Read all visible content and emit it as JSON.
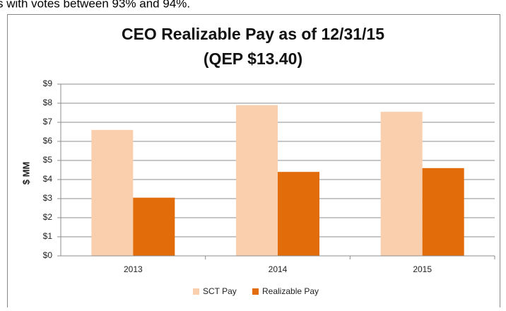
{
  "caption": "s with votes between 93% and 94%.",
  "chart_data": {
    "type": "bar",
    "title": "CEO Realizable Pay as of 12/31/15",
    "subtitle": "(QEP $13.40)",
    "y_label": "$ MM",
    "categories": [
      "2013",
      "2014",
      "2015"
    ],
    "series": [
      {
        "name": "SCT Pay",
        "color": "#f9cfae",
        "values": [
          6.6,
          7.9,
          7.55
        ]
      },
      {
        "name": "Realizable Pay",
        "color": "#e36c0a",
        "values": [
          3.05,
          4.4,
          4.6
        ]
      }
    ],
    "ylim": [
      0,
      9
    ],
    "yticks": [
      {
        "value": 0,
        "label": "$0"
      },
      {
        "value": 1,
        "label": "$1"
      },
      {
        "value": 2,
        "label": "$2"
      },
      {
        "value": 3,
        "label": "$3"
      },
      {
        "value": 4,
        "label": "$4"
      },
      {
        "value": 5,
        "label": "$5"
      },
      {
        "value": 6,
        "label": "$6"
      },
      {
        "value": 7,
        "label": "$7"
      },
      {
        "value": 8,
        "label": "$8"
      },
      {
        "value": 9,
        "label": "$9"
      }
    ],
    "grid": true,
    "legend": "bottom"
  }
}
